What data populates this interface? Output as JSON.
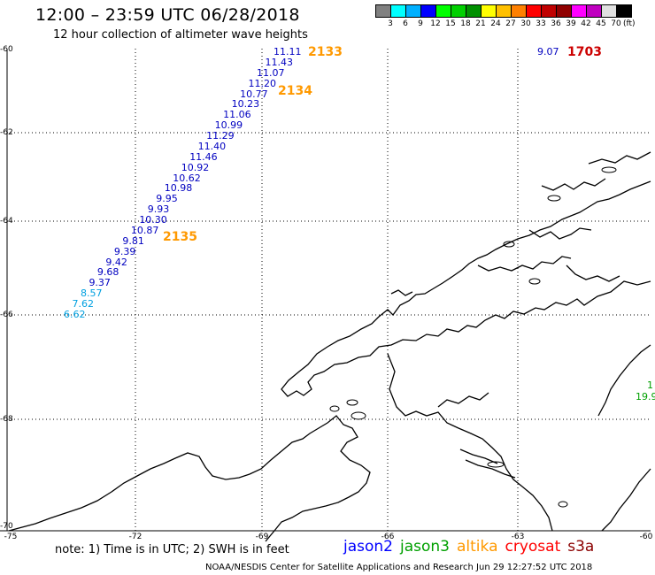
{
  "header": {
    "title": "12:00 – 23:59 UTC 06/28/2018",
    "subtitle": "12 hour collection of altimeter wave heights"
  },
  "scale": {
    "colors": [
      "#808080",
      "#00ffff",
      "#00b0ff",
      "#0000ff",
      "#00ff00",
      "#00d000",
      "#009000",
      "#ffff00",
      "#ffc000",
      "#ff8000",
      "#ff0000",
      "#c00000",
      "#900000",
      "#ff00ff",
      "#c000c0",
      "#e0e0e0",
      "#000000"
    ],
    "labels": [
      "3",
      "6",
      "9",
      "12",
      "15",
      "18",
      "21",
      "24",
      "27",
      "30",
      "33",
      "36",
      "39",
      "42",
      "45",
      "70"
    ],
    "unit": "(ft)"
  },
  "axes": {
    "lat_labels": [
      "-60",
      "-62",
      "-64",
      "-66",
      "-68",
      "-70"
    ],
    "lon_labels": [
      "-75",
      "-72",
      "-69",
      "-66",
      "-63",
      "-60"
    ]
  },
  "tracks": {
    "main": [
      {
        "v": "11.11",
        "c": "#0000c0"
      },
      {
        "v": "11.43",
        "c": "#0000c0"
      },
      {
        "v": "11.07",
        "c": "#0000c0"
      },
      {
        "v": "11.20",
        "c": "#0000c0"
      },
      {
        "v": "10.77",
        "c": "#0000c0"
      },
      {
        "v": "10.23",
        "c": "#0000c0"
      },
      {
        "v": "11.06",
        "c": "#0000c0"
      },
      {
        "v": "10.99",
        "c": "#0000c0"
      },
      {
        "v": "11.29",
        "c": "#0000c0"
      },
      {
        "v": "11.40",
        "c": "#0000c0"
      },
      {
        "v": "11.46",
        "c": "#0000c0"
      },
      {
        "v": "10.92",
        "c": "#0000c0"
      },
      {
        "v": "10.62",
        "c": "#0000c0"
      },
      {
        "v": "10.98",
        "c": "#0000c0"
      },
      {
        "v": "9.95",
        "c": "#0000c0"
      },
      {
        "v": "9.93",
        "c": "#0000c0"
      },
      {
        "v": "10.30",
        "c": "#0000c0"
      },
      {
        "v": "10.87",
        "c": "#0000c0"
      },
      {
        "v": "9.81",
        "c": "#0000c0"
      },
      {
        "v": "9.39",
        "c": "#0000c0"
      },
      {
        "v": "9.42",
        "c": "#0000c0"
      },
      {
        "v": "9.68",
        "c": "#0000c0"
      },
      {
        "v": "9.37",
        "c": "#0000c0"
      },
      {
        "v": "8.57",
        "c": "#00a0e0"
      },
      {
        "v": "7.62",
        "c": "#00a0e0"
      },
      {
        "v": "6.62",
        "c": "#00a0e0"
      }
    ],
    "right_top_value": "9.07",
    "right_edge_value": "19.9",
    "right_edge_partial": "1"
  },
  "passes": [
    {
      "id": "2133",
      "color": "#ff9900"
    },
    {
      "id": "2134",
      "color": "#ff9900"
    },
    {
      "id": "2135",
      "color": "#ff9900"
    },
    {
      "id": "1703",
      "color": "#cc0000"
    }
  ],
  "note": "note:  1) Time is in UTC;  2) SWH is in feet",
  "satellites": [
    {
      "name": "jason2",
      "color": "#0000ff"
    },
    {
      "name": "jason3",
      "color": "#00a000"
    },
    {
      "name": "altika",
      "color": "#ff9900"
    },
    {
      "name": "cryosat",
      "color": "#ff0000"
    },
    {
      "name": "s3a",
      "color": "#8b0000"
    }
  ],
  "footer": "NOAA/NESDIS Center for Satellite Applications and Research    Jun 29 12:27:52 UTC 2018"
}
